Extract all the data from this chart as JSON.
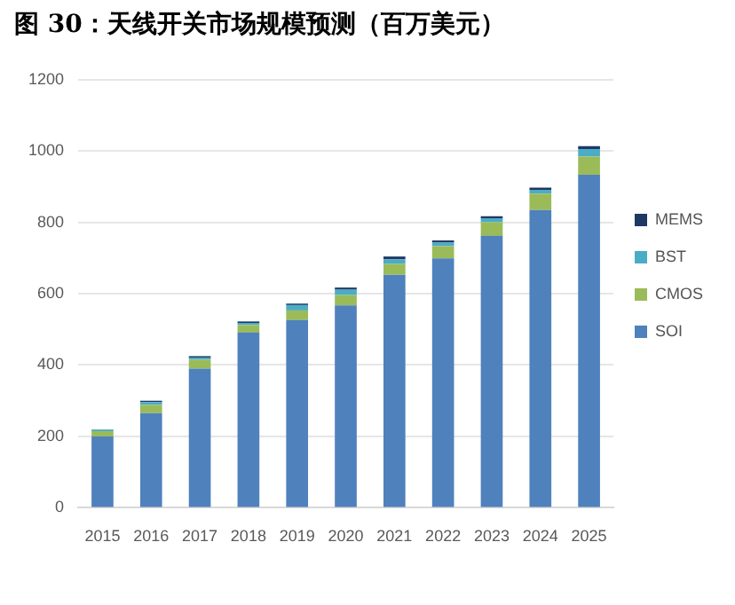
{
  "chart_data": {
    "type": "bar",
    "title": "图 30：天线开关市场规模预测（百万美元）",
    "stacked": true,
    "categories": [
      "2015",
      "2016",
      "2017",
      "2018",
      "2019",
      "2020",
      "2021",
      "2022",
      "2023",
      "2024",
      "2025"
    ],
    "series": [
      {
        "name": "SOI",
        "color": "#4f81bd",
        "values": [
          200,
          265,
          390,
          491,
          526,
          567,
          653,
          699,
          762,
          834,
          933
        ]
      },
      {
        "name": "CMOS",
        "color": "#9bbb59",
        "values": [
          15,
          23,
          25,
          21,
          27,
          29,
          30,
          34,
          38,
          46,
          51
        ]
      },
      {
        "name": "BST",
        "color": "#4bacc6",
        "values": [
          4,
          8,
          6,
          6,
          15,
          15,
          13,
          10,
          11,
          11,
          21
        ]
      },
      {
        "name": "MEMS",
        "color": "#1f3864",
        "values": [
          1,
          4,
          4,
          4,
          4,
          6,
          8,
          6,
          6,
          6,
          8
        ]
      }
    ],
    "ylim": [
      0,
      1200
    ],
    "yticks": [
      0,
      200,
      400,
      600,
      800,
      1000,
      1200
    ],
    "grid": "y",
    "legend": "right"
  }
}
